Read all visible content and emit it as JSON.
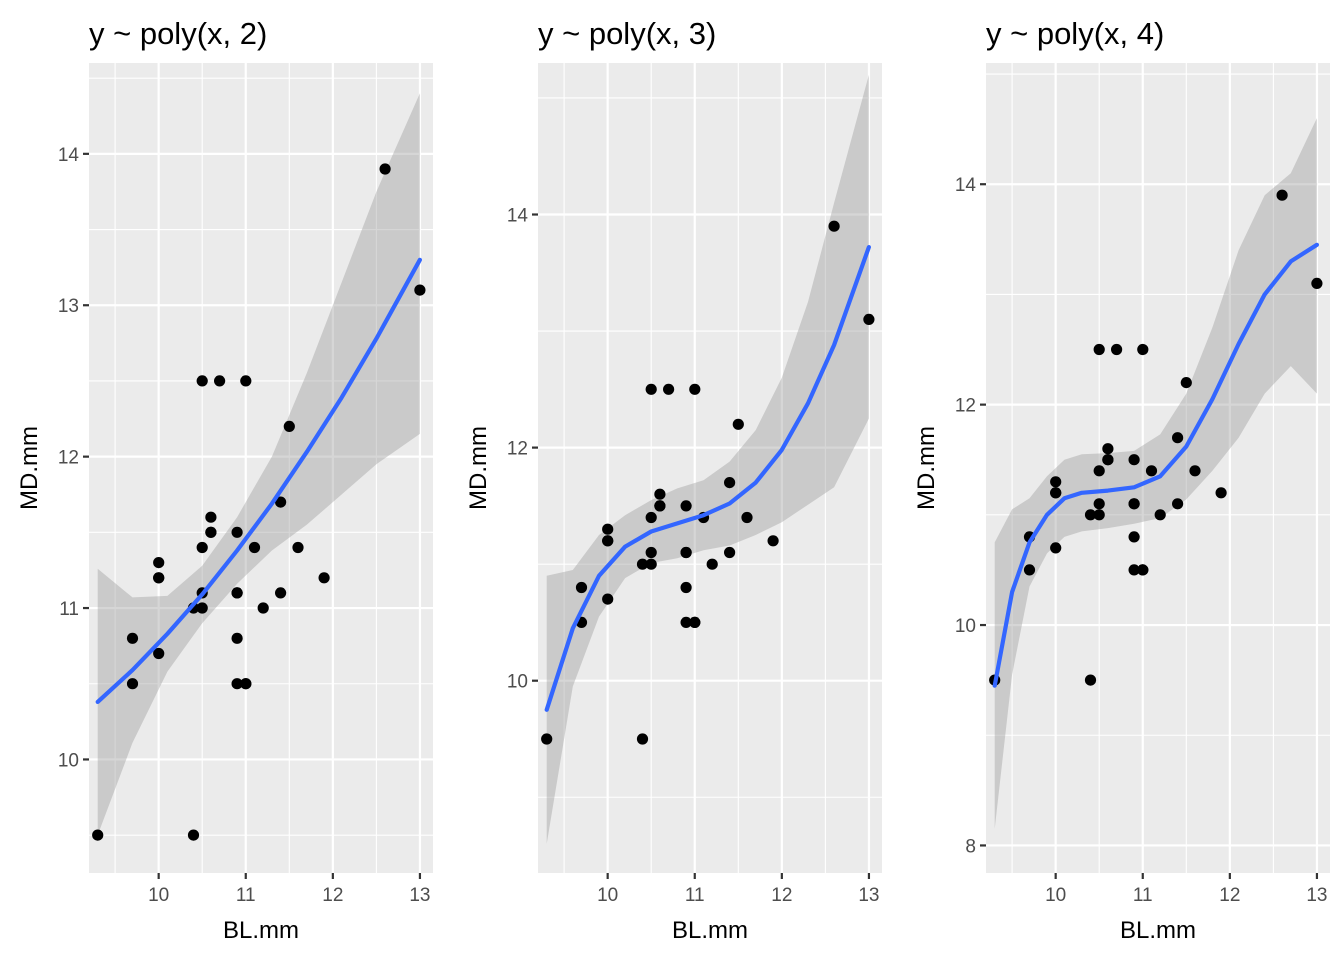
{
  "chart_data": [
    {
      "type": "scatter",
      "title": "y ~ poly(x, 2)",
      "xlabel": "BL.mm",
      "ylabel": "MD.mm",
      "xlim": [
        9.2,
        13.15
      ],
      "ylim": [
        9.25,
        14.6
      ],
      "xticks": [
        10,
        11,
        12,
        13
      ],
      "yticks": [
        10,
        11,
        12,
        13,
        14
      ],
      "smooth": {
        "x": [
          9.3,
          9.7,
          10.1,
          10.5,
          10.9,
          11.3,
          11.7,
          12.1,
          12.5,
          13.0
        ],
        "y": [
          10.38,
          10.59,
          10.83,
          11.09,
          11.38,
          11.69,
          12.03,
          12.39,
          12.78,
          13.3
        ],
        "upper": [
          11.26,
          11.07,
          11.08,
          11.28,
          11.6,
          12.0,
          12.55,
          13.15,
          13.75,
          14.4
        ],
        "lower": [
          9.5,
          10.11,
          10.58,
          10.9,
          11.16,
          11.38,
          11.55,
          11.75,
          11.95,
          12.15
        ]
      }
    },
    {
      "type": "scatter",
      "title": "y ~ poly(x, 3)",
      "xlabel": "BL.mm",
      "ylabel": "MD.mm",
      "xlim": [
        9.2,
        13.15
      ],
      "ylim": [
        8.35,
        15.3
      ],
      "xticks": [
        10,
        11,
        12,
        13
      ],
      "yticks": [
        10,
        12,
        14
      ],
      "smooth": {
        "x": [
          9.3,
          9.6,
          9.9,
          10.2,
          10.5,
          10.8,
          11.1,
          11.4,
          11.7,
          12.0,
          12.3,
          12.6,
          13.0
        ],
        "y": [
          9.75,
          10.45,
          10.9,
          11.15,
          11.28,
          11.35,
          11.42,
          11.52,
          11.7,
          11.98,
          12.38,
          12.88,
          13.72
        ],
        "upper": [
          10.9,
          10.95,
          11.25,
          11.42,
          11.55,
          11.65,
          11.72,
          11.88,
          12.15,
          12.6,
          13.25,
          14.1,
          15.2
        ],
        "lower": [
          8.6,
          9.95,
          10.55,
          10.88,
          11.01,
          11.05,
          11.12,
          11.16,
          11.25,
          11.36,
          11.51,
          11.66,
          12.25
        ]
      }
    },
    {
      "type": "scatter",
      "title": "y ~ poly(x, 4)",
      "xlabel": "BL.mm",
      "ylabel": "MD.mm",
      "xlim": [
        9.2,
        13.15
      ],
      "ylim": [
        7.75,
        15.1
      ],
      "xticks": [
        10,
        11,
        12,
        13
      ],
      "yticks": [
        8,
        10,
        12,
        14
      ],
      "smooth": {
        "x": [
          9.3,
          9.5,
          9.7,
          9.9,
          10.1,
          10.3,
          10.6,
          10.9,
          11.2,
          11.5,
          11.8,
          12.1,
          12.4,
          12.7,
          13.0
        ],
        "y": [
          9.45,
          10.3,
          10.75,
          11.0,
          11.15,
          11.2,
          11.22,
          11.25,
          11.35,
          11.62,
          12.05,
          12.55,
          13.0,
          13.3,
          13.45
        ],
        "upper": [
          10.75,
          11.05,
          11.15,
          11.35,
          11.5,
          11.55,
          11.56,
          11.58,
          11.73,
          12.1,
          12.7,
          13.4,
          13.9,
          14.1,
          14.6
        ],
        "lower": [
          8.15,
          9.55,
          10.35,
          10.65,
          10.8,
          10.85,
          10.88,
          10.92,
          10.97,
          11.14,
          11.4,
          11.7,
          12.1,
          12.35,
          12.1
        ]
      }
    }
  ],
  "points": {
    "x": [
      9.3,
      9.7,
      9.7,
      10.0,
      10.0,
      10.0,
      10.0,
      10.4,
      10.4,
      10.5,
      10.5,
      10.5,
      10.5,
      10.6,
      10.6,
      10.6,
      10.7,
      10.9,
      10.9,
      10.9,
      10.9,
      10.9,
      11.0,
      11.0,
      11.0,
      11.1,
      11.2,
      11.4,
      11.4,
      11.5,
      11.6,
      11.9,
      12.6,
      13.0
    ],
    "y": [
      9.5,
      10.8,
      10.5,
      11.3,
      11.2,
      10.7,
      11.2,
      11.0,
      9.5,
      12.5,
      11.4,
      11.1,
      11.0,
      11.6,
      11.5,
      11.5,
      12.5,
      11.5,
      11.1,
      10.8,
      10.5,
      11.1,
      12.5,
      10.5,
      10.5,
      11.4,
      11.0,
      11.7,
      11.1,
      12.2,
      11.4,
      11.2,
      13.9,
      13.1
    ]
  }
}
